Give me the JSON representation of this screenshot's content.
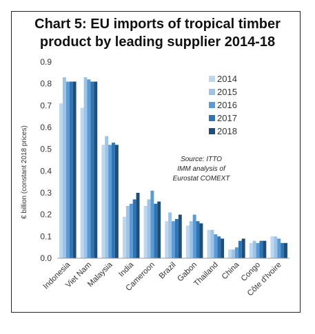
{
  "chart_data": {
    "type": "bar",
    "title_lines": [
      "Chart 5: EU imports of tropical timber",
      "product by leading supplier 2014-18"
    ],
    "ylabel": "€ billion (constant 2018 prices)",
    "xlabel": "",
    "ylim": [
      0,
      0.9
    ],
    "yticks": [
      "0.0",
      "0.1",
      "0.2",
      "0.3",
      "0.4",
      "0.5",
      "0.6",
      "0.7",
      "0.8",
      "0.9"
    ],
    "grid": false,
    "legend_position": "top-right",
    "categories": [
      "Indonesia",
      "Viet Nam",
      "Malaysia",
      "India",
      "Cameroon",
      "Brazil",
      "Gabon",
      "Thailand",
      "China",
      "Congo",
      "Côte d'Ivoire"
    ],
    "series": [
      {
        "name": "2014",
        "color": "#bdd7ee",
        "values": [
          0.71,
          0.69,
          0.52,
          0.19,
          0.24,
          0.17,
          0.15,
          0.13,
          0.04,
          0.07,
          0.1
        ]
      },
      {
        "name": "2015",
        "color": "#9dc3e6",
        "values": [
          0.83,
          0.83,
          0.56,
          0.24,
          0.27,
          0.21,
          0.17,
          0.13,
          0.04,
          0.08,
          0.1
        ]
      },
      {
        "name": "2016",
        "color": "#5b9bd5",
        "values": [
          0.81,
          0.82,
          0.52,
          0.25,
          0.31,
          0.17,
          0.2,
          0.11,
          0.05,
          0.07,
          0.09
        ]
      },
      {
        "name": "2017",
        "color": "#2e75b6",
        "values": [
          0.81,
          0.81,
          0.53,
          0.27,
          0.25,
          0.18,
          0.17,
          0.1,
          0.08,
          0.08,
          0.07
        ]
      },
      {
        "name": "2018",
        "color": "#1f4e79",
        "values": [
          0.81,
          0.81,
          0.52,
          0.3,
          0.26,
          0.2,
          0.16,
          0.09,
          0.09,
          0.08,
          0.07
        ]
      }
    ],
    "annotation_lines": [
      "Source: ITTO",
      "IMM analysis of",
      "Eurostat COMEXT"
    ]
  }
}
